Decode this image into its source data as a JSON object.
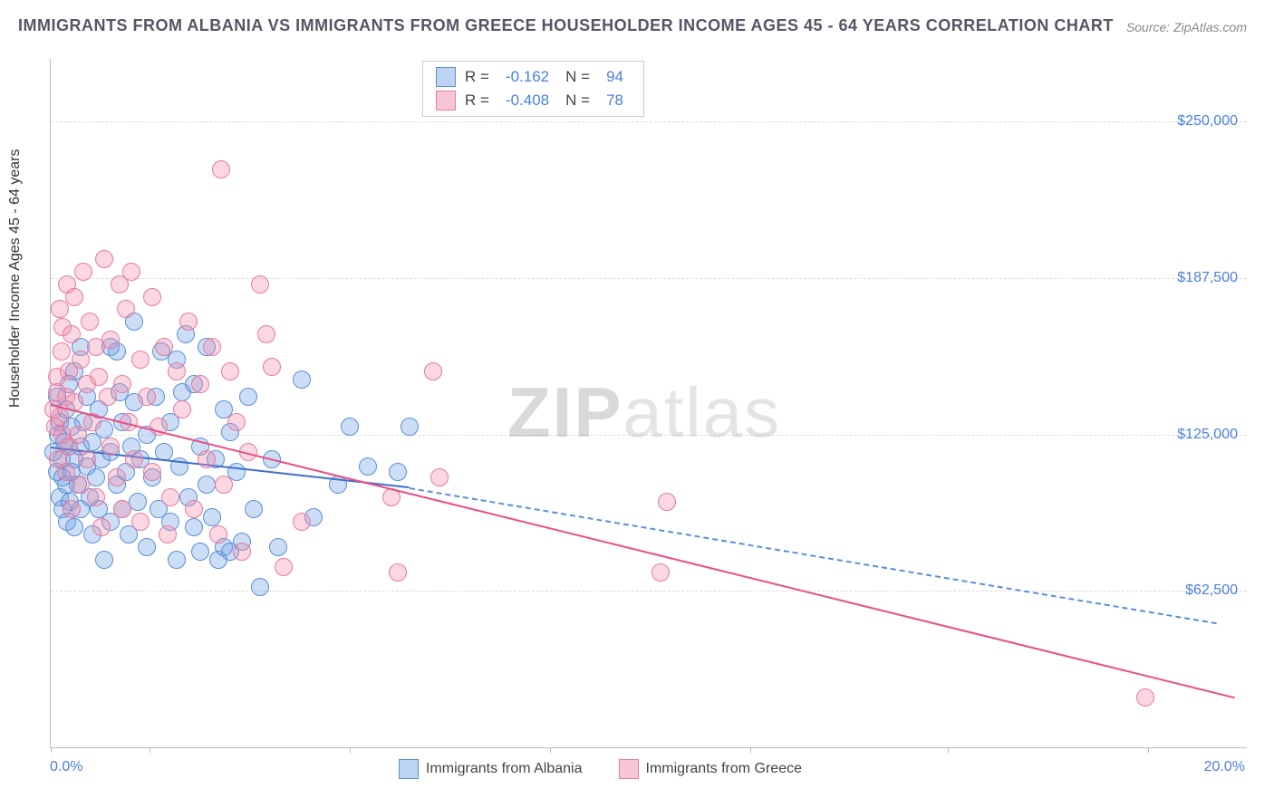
{
  "title": "IMMIGRANTS FROM ALBANIA VS IMMIGRANTS FROM GREECE HOUSEHOLDER INCOME AGES 45 - 64 YEARS CORRELATION CHART",
  "source_label": "Source: ZipAtlas.com",
  "watermark": {
    "bold": "ZIP",
    "light": "atlas"
  },
  "chart": {
    "type": "scatter",
    "background_color": "#ffffff",
    "grid_color": "#dddddd",
    "axis_color": "#bbbbbb",
    "ylabel": "Householder Income Ages 45 - 64 years",
    "label_fontsize": 16,
    "label_color": "#333333",
    "tick_label_color": "#4a7fe0",
    "xlim": [
      0,
      20
    ],
    "ylim": [
      0,
      275000
    ],
    "xtick_positions": [
      0,
      1.65,
      5.0,
      8.35,
      11.7,
      15.0,
      18.35
    ],
    "xaxis_min_label": "0.0%",
    "xaxis_max_label": "20.0%",
    "yticks": [
      {
        "value": 62500,
        "label": "$62,500"
      },
      {
        "value": 125000,
        "label": "$125,000"
      },
      {
        "value": 187500,
        "label": "$187,500"
      },
      {
        "value": 250000,
        "label": "$250,000"
      }
    ],
    "marker_radius": 9,
    "marker_border_width": 1.5,
    "trend_width": 2,
    "series": [
      {
        "name": "Immigrants from Albania",
        "fill_color": "rgba(110,160,230,0.35)",
        "stroke_color": "#5a8fd6",
        "swatch_fill": "#bcd3f2",
        "swatch_border": "#5a8fd6",
        "R": "-0.162",
        "N": "94",
        "trend": {
          "x1": 0.0,
          "y1": 120000,
          "x2": 6.0,
          "y2": 104000,
          "color": "#3d6fc9"
        },
        "trend_extrapolate": {
          "x1": 6.0,
          "y1": 104000,
          "x2": 19.5,
          "y2": 50000,
          "color": "#5a8fd6"
        },
        "points": [
          [
            0.05,
            118000
          ],
          [
            0.1,
            140000
          ],
          [
            0.1,
            110000
          ],
          [
            0.12,
            125000
          ],
          [
            0.15,
            100000
          ],
          [
            0.15,
            130000
          ],
          [
            0.18,
            115000
          ],
          [
            0.2,
            108000
          ],
          [
            0.2,
            95000
          ],
          [
            0.22,
            122000
          ],
          [
            0.25,
            135000
          ],
          [
            0.25,
            105000
          ],
          [
            0.28,
            90000
          ],
          [
            0.3,
            120000
          ],
          [
            0.3,
            145000
          ],
          [
            0.32,
            98000
          ],
          [
            0.35,
            110000
          ],
          [
            0.35,
            128000
          ],
          [
            0.4,
            150000
          ],
          [
            0.4,
            115000
          ],
          [
            0.4,
            88000
          ],
          [
            0.45,
            105000
          ],
          [
            0.5,
            160000
          ],
          [
            0.5,
            120000
          ],
          [
            0.5,
            95000
          ],
          [
            0.55,
            130000
          ],
          [
            0.6,
            112000
          ],
          [
            0.6,
            140000
          ],
          [
            0.65,
            100000
          ],
          [
            0.7,
            122000
          ],
          [
            0.7,
            85000
          ],
          [
            0.75,
            108000
          ],
          [
            0.8,
            135000
          ],
          [
            0.8,
            95000
          ],
          [
            0.85,
            115000
          ],
          [
            0.9,
            127000
          ],
          [
            0.9,
            75000
          ],
          [
            1.0,
            160000
          ],
          [
            1.0,
            118000
          ],
          [
            1.0,
            90000
          ],
          [
            1.1,
            105000
          ],
          [
            1.1,
            158000
          ],
          [
            1.15,
            142000
          ],
          [
            1.2,
            130000
          ],
          [
            1.2,
            95000
          ],
          [
            1.25,
            110000
          ],
          [
            1.3,
            85000
          ],
          [
            1.35,
            120000
          ],
          [
            1.4,
            170000
          ],
          [
            1.4,
            138000
          ],
          [
            1.45,
            98000
          ],
          [
            1.5,
            115000
          ],
          [
            1.6,
            125000
          ],
          [
            1.6,
            80000
          ],
          [
            1.7,
            108000
          ],
          [
            1.75,
            140000
          ],
          [
            1.8,
            95000
          ],
          [
            1.85,
            158000
          ],
          [
            1.9,
            118000
          ],
          [
            2.0,
            130000
          ],
          [
            2.0,
            90000
          ],
          [
            2.1,
            155000
          ],
          [
            2.1,
            75000
          ],
          [
            2.15,
            112000
          ],
          [
            2.2,
            142000
          ],
          [
            2.25,
            165000
          ],
          [
            2.3,
            100000
          ],
          [
            2.4,
            88000
          ],
          [
            2.4,
            145000
          ],
          [
            2.5,
            120000
          ],
          [
            2.5,
            78000
          ],
          [
            2.6,
            105000
          ],
          [
            2.6,
            160000
          ],
          [
            2.7,
            92000
          ],
          [
            2.75,
            115000
          ],
          [
            2.8,
            75000
          ],
          [
            2.9,
            135000
          ],
          [
            2.9,
            80000
          ],
          [
            3.0,
            78000
          ],
          [
            3.0,
            126000
          ],
          [
            3.1,
            110000
          ],
          [
            3.2,
            82000
          ],
          [
            3.3,
            140000
          ],
          [
            3.4,
            95000
          ],
          [
            3.5,
            64000
          ],
          [
            3.7,
            115000
          ],
          [
            3.8,
            80000
          ],
          [
            4.2,
            147000
          ],
          [
            4.4,
            92000
          ],
          [
            4.8,
            105000
          ],
          [
            5.0,
            128000
          ],
          [
            5.3,
            112000
          ],
          [
            5.8,
            110000
          ],
          [
            6.0,
            128000
          ]
        ]
      },
      {
        "name": "Immigrants from Greece",
        "fill_color": "rgba(240,140,170,0.35)",
        "stroke_color": "#e77aa0",
        "swatch_fill": "#f6c6d6",
        "swatch_border": "#e77aa0",
        "R": "-0.408",
        "N": "78",
        "trend": {
          "x1": 0.0,
          "y1": 137000,
          "x2": 19.8,
          "y2": 20000,
          "color": "#e94f86"
        },
        "points": [
          [
            0.05,
            135000
          ],
          [
            0.08,
            128000
          ],
          [
            0.1,
            148000
          ],
          [
            0.12,
            115000
          ],
          [
            0.15,
            175000
          ],
          [
            0.15,
            132000
          ],
          [
            0.18,
            158000
          ],
          [
            0.2,
            125000
          ],
          [
            0.2,
            168000
          ],
          [
            0.25,
            140000
          ],
          [
            0.25,
            110000
          ],
          [
            0.28,
            185000
          ],
          [
            0.3,
            150000
          ],
          [
            0.3,
            120000
          ],
          [
            0.35,
            95000
          ],
          [
            0.35,
            165000
          ],
          [
            0.4,
            138000
          ],
          [
            0.4,
            180000
          ],
          [
            0.45,
            125000
          ],
          [
            0.5,
            155000
          ],
          [
            0.5,
            105000
          ],
          [
            0.55,
            190000
          ],
          [
            0.6,
            145000
          ],
          [
            0.6,
            115000
          ],
          [
            0.65,
            170000
          ],
          [
            0.7,
            130000
          ],
          [
            0.75,
            160000
          ],
          [
            0.75,
            100000
          ],
          [
            0.8,
            148000
          ],
          [
            0.85,
            88000
          ],
          [
            0.9,
            195000
          ],
          [
            0.95,
            140000
          ],
          [
            1.0,
            120000
          ],
          [
            1.0,
            163000
          ],
          [
            1.1,
            108000
          ],
          [
            1.15,
            185000
          ],
          [
            1.2,
            145000
          ],
          [
            1.2,
            95000
          ],
          [
            1.25,
            175000
          ],
          [
            1.3,
            130000
          ],
          [
            1.35,
            190000
          ],
          [
            1.4,
            115000
          ],
          [
            1.5,
            155000
          ],
          [
            1.5,
            90000
          ],
          [
            1.6,
            140000
          ],
          [
            1.7,
            180000
          ],
          [
            1.7,
            110000
          ],
          [
            1.8,
            128000
          ],
          [
            1.9,
            160000
          ],
          [
            1.95,
            85000
          ],
          [
            2.0,
            100000
          ],
          [
            2.1,
            150000
          ],
          [
            2.2,
            135000
          ],
          [
            2.3,
            170000
          ],
          [
            2.4,
            95000
          ],
          [
            2.5,
            145000
          ],
          [
            2.6,
            115000
          ],
          [
            2.7,
            160000
          ],
          [
            2.8,
            85000
          ],
          [
            2.85,
            231000
          ],
          [
            2.9,
            105000
          ],
          [
            3.0,
            150000
          ],
          [
            3.1,
            130000
          ],
          [
            3.2,
            78000
          ],
          [
            3.3,
            118000
          ],
          [
            3.5,
            185000
          ],
          [
            3.6,
            165000
          ],
          [
            3.7,
            152000
          ],
          [
            3.9,
            72000
          ],
          [
            4.2,
            90000
          ],
          [
            5.7,
            100000
          ],
          [
            5.8,
            70000
          ],
          [
            6.4,
            150000
          ],
          [
            6.5,
            108000
          ],
          [
            10.2,
            70000
          ],
          [
            10.3,
            98000
          ],
          [
            18.3,
            20000
          ],
          [
            0.1,
            142000
          ]
        ]
      }
    ],
    "stats_box": {
      "R_label": "R =",
      "N_label": "N ="
    },
    "legend_items": [
      {
        "label": "Immigrants from Albania",
        "fill": "#bcd3f2",
        "border": "#5a8fd6"
      },
      {
        "label": "Immigrants from Greece",
        "fill": "#f6c6d6",
        "border": "#e77aa0"
      }
    ]
  }
}
